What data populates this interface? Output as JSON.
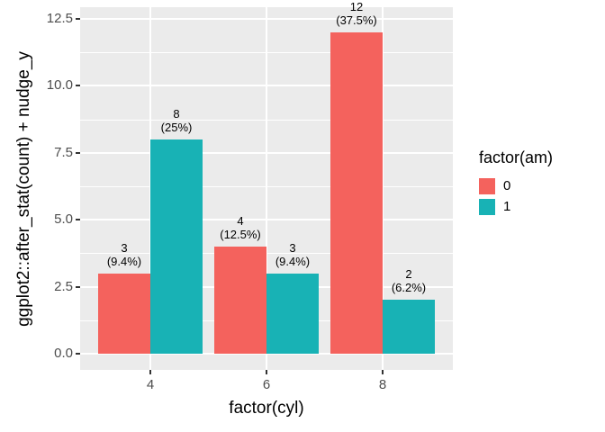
{
  "chart_data": {
    "type": "bar",
    "title": "",
    "xlabel": "factor(cyl)",
    "ylabel": "ggplot2::after_stat(count) + nudge_y",
    "legend_title": "factor(am)",
    "legend_position": "right",
    "categories": [
      "4",
      "6",
      "8"
    ],
    "series": [
      {
        "name": "0",
        "color": "#F4625D",
        "values": [
          3,
          4,
          12
        ],
        "pct_labels": [
          "(9.4%)",
          "(12.5%)",
          "(37.5%)"
        ]
      },
      {
        "name": "1",
        "color": "#18B2B5",
        "values": [
          8,
          3,
          2
        ],
        "pct_labels": [
          "(25%)",
          "(9.4%)",
          "(6.2%)"
        ]
      }
    ],
    "y_ticks": [
      0.0,
      2.5,
      5.0,
      7.5,
      10.0,
      12.5
    ],
    "y_tick_labels": [
      "0.0",
      "2.5",
      "5.0",
      "7.5",
      "10.0",
      "12.5"
    ],
    "ylim": [
      0,
      12.5
    ],
    "grid": "white major and minor gridlines on gray panel",
    "panel_bg": "#EBEBEB",
    "grid_color": "#FFFFFF",
    "tick_label_color": "#4D4D4D",
    "tick_mark_color": "#333333"
  }
}
